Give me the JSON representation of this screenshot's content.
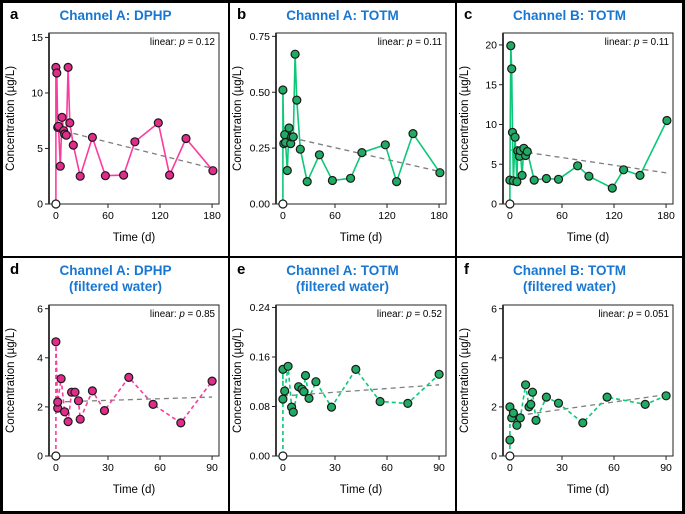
{
  "figure": {
    "background": "#ffffff",
    "border_color": "#000000",
    "title_color": "#1777D2",
    "axis_color": "#222222",
    "spine_color": "#3d3d3d",
    "trend_color": "#7f7f7f",
    "series_colors": {
      "pink_line": "#FA3C9F",
      "pink_fill": "#E02C8B",
      "green_line": "#0CC878",
      "green_fill": "#1FAB63",
      "marker_stroke": "#1a1a1a",
      "origin_fill": "#ffffff"
    }
  },
  "chart_data": [
    {
      "type": "scatter",
      "panel_letter": "a",
      "title": "Channel A: DPHP",
      "subtitle": "",
      "annotation": {
        "prefix": "linear: ",
        "variable": "p",
        "eq": " = 0.12"
      },
      "xlabel": "Time (d)",
      "ylabel": "Concentration (µg/L)",
      "xlim": [
        -8,
        188
      ],
      "ylim": [
        0,
        15.4
      ],
      "x_ticks": [
        0,
        60,
        120,
        180
      ],
      "x_tick_labels": [
        "0",
        "60",
        "120",
        "180"
      ],
      "y_ticks": [
        0,
        5,
        10,
        15
      ],
      "y_tick_labels": [
        "0",
        "5",
        "10",
        "15"
      ],
      "series": "pink",
      "line_style": "solid",
      "points": [
        [
          0,
          0
        ],
        [
          0,
          12.3
        ],
        [
          1,
          11.8
        ],
        [
          2,
          6.9
        ],
        [
          3,
          7.0
        ],
        [
          5,
          3.4
        ],
        [
          7,
          7.8
        ],
        [
          9,
          6.6
        ],
        [
          10,
          6.3
        ],
        [
          12,
          6.2
        ],
        [
          14,
          12.3
        ],
        [
          16,
          7.3
        ],
        [
          20,
          5.3
        ],
        [
          28,
          2.5
        ],
        [
          42,
          6.0
        ],
        [
          57,
          2.55
        ],
        [
          78,
          2.6
        ],
        [
          91,
          5.6
        ],
        [
          118,
          7.3
        ],
        [
          131,
          2.6
        ],
        [
          150,
          5.9
        ],
        [
          181,
          3.0
        ]
      ],
      "trend": {
        "style": "dashed",
        "x": [
          0,
          181
        ],
        "y": [
          6.75,
          3.2
        ]
      }
    },
    {
      "type": "scatter",
      "panel_letter": "b",
      "title": "Channel A: TOTM",
      "subtitle": "",
      "annotation": {
        "prefix": "linear: ",
        "variable": "p",
        "eq": " = 0.11"
      },
      "xlabel": "Time (d)",
      "ylabel": "Concentration (µg/L)",
      "xlim": [
        -8,
        188
      ],
      "ylim": [
        0,
        0.765
      ],
      "x_ticks": [
        0,
        60,
        120,
        180
      ],
      "x_tick_labels": [
        "0",
        "60",
        "120",
        "180"
      ],
      "y_ticks": [
        0,
        0.25,
        0.5,
        0.75
      ],
      "y_tick_labels": [
        "0.00",
        "0.25",
        "0.50",
        "0.75"
      ],
      "series": "green",
      "line_style": "solid",
      "points": [
        [
          0,
          0
        ],
        [
          0,
          0.51
        ],
        [
          1,
          0.27
        ],
        [
          2,
          0.31
        ],
        [
          3,
          0.275
        ],
        [
          5,
          0.15
        ],
        [
          7,
          0.34
        ],
        [
          9,
          0.27
        ],
        [
          10,
          0.3
        ],
        [
          12,
          0.3
        ],
        [
          14,
          0.67
        ],
        [
          16,
          0.465
        ],
        [
          20,
          0.245
        ],
        [
          28,
          0.1
        ],
        [
          42,
          0.22
        ],
        [
          57,
          0.105
        ],
        [
          78,
          0.115
        ],
        [
          91,
          0.23
        ],
        [
          118,
          0.265
        ],
        [
          131,
          0.1
        ],
        [
          150,
          0.315
        ],
        [
          181,
          0.14
        ]
      ],
      "trend": {
        "style": "dashed",
        "x": [
          0,
          181
        ],
        "y": [
          0.305,
          0.145
        ]
      }
    },
    {
      "type": "scatter",
      "panel_letter": "c",
      "title": "Channel B: TOTM",
      "subtitle": "",
      "annotation": {
        "prefix": "linear: ",
        "variable": "p",
        "eq": " = 0.11"
      },
      "xlabel": "Time (d)",
      "ylabel": "Concentration (µg/L)",
      "xlim": [
        -8,
        188
      ],
      "ylim": [
        0,
        21.5
      ],
      "x_ticks": [
        0,
        60,
        120,
        180
      ],
      "x_tick_labels": [
        "0",
        "60",
        "120",
        "180"
      ],
      "y_ticks": [
        0,
        5,
        10,
        15,
        20
      ],
      "y_tick_labels": [
        "0",
        "5",
        "10",
        "15",
        "20"
      ],
      "series": "green",
      "line_style": "solid",
      "points": [
        [
          0,
          0
        ],
        [
          0,
          3.0
        ],
        [
          1,
          19.9
        ],
        [
          2,
          17.0
        ],
        [
          3,
          9.0
        ],
        [
          4,
          2.9
        ],
        [
          6,
          8.4
        ],
        [
          8,
          2.8
        ],
        [
          9,
          6.7
        ],
        [
          11,
          6.0
        ],
        [
          12,
          6.7
        ],
        [
          14,
          3.6
        ],
        [
          16,
          7.0
        ],
        [
          18,
          6.1
        ],
        [
          20,
          6.6
        ],
        [
          28,
          3.0
        ],
        [
          42,
          3.2
        ],
        [
          56,
          3.1
        ],
        [
          78,
          4.8
        ],
        [
          91,
          3.5
        ],
        [
          118,
          2.0
        ],
        [
          131,
          4.3
        ],
        [
          150,
          3.6
        ],
        [
          181,
          10.5
        ]
      ],
      "trend": {
        "style": "dashed",
        "x": [
          0,
          181
        ],
        "y": [
          6.8,
          3.9
        ]
      }
    },
    {
      "type": "scatter",
      "panel_letter": "d",
      "title": "Channel A: DPHP",
      "subtitle": "(filtered water)",
      "annotation": {
        "prefix": "linear: ",
        "variable": "p",
        "eq": " = 0.85"
      },
      "xlabel": "Time (d)",
      "ylabel": "Concentration (µg/L)",
      "xlim": [
        -4,
        94
      ],
      "ylim": [
        0,
        6.15
      ],
      "x_ticks": [
        0,
        30,
        60,
        90
      ],
      "x_tick_labels": [
        "0",
        "30",
        "60",
        "90"
      ],
      "y_ticks": [
        0,
        2,
        4,
        6
      ],
      "y_tick_labels": [
        "0",
        "2",
        "4",
        "6"
      ],
      "series": "pink",
      "line_style": "dashed",
      "points": [
        [
          0,
          0
        ],
        [
          0,
          4.65
        ],
        [
          1,
          1.95
        ],
        [
          1,
          2.2
        ],
        [
          3,
          3.15
        ],
        [
          5,
          1.8
        ],
        [
          7,
          1.4
        ],
        [
          9,
          2.6
        ],
        [
          11,
          2.6
        ],
        [
          13,
          2.25
        ],
        [
          14,
          1.5
        ],
        [
          21,
          2.65
        ],
        [
          28,
          1.85
        ],
        [
          42,
          3.2
        ],
        [
          56,
          2.1
        ],
        [
          72,
          1.35
        ],
        [
          90,
          3.05
        ]
      ],
      "trend": {
        "style": "dashed",
        "x": [
          0,
          90
        ],
        "y": [
          2.2,
          2.4
        ]
      }
    },
    {
      "type": "scatter",
      "panel_letter": "e",
      "title": "Channel A: TOTM",
      "subtitle": "(filtered water)",
      "annotation": {
        "prefix": "linear: ",
        "variable": "p",
        "eq": " = 0.52"
      },
      "xlabel": "Time (d)",
      "ylabel": "Concentration (µg/L)",
      "xlim": [
        -4,
        94
      ],
      "ylim": [
        0,
        0.244
      ],
      "x_ticks": [
        0,
        30,
        60,
        90
      ],
      "x_tick_labels": [
        "0",
        "30",
        "60",
        "90"
      ],
      "y_ticks": [
        0,
        0.08,
        0.16,
        0.24
      ],
      "y_tick_labels": [
        "0.00",
        "0.08",
        "0.16",
        "0.24"
      ],
      "series": "green",
      "line_style": "dashed",
      "points": [
        [
          0,
          0
        ],
        [
          0,
          0.14
        ],
        [
          0,
          0.092
        ],
        [
          1,
          0.105
        ],
        [
          3,
          0.145
        ],
        [
          5,
          0.079
        ],
        [
          6,
          0.071
        ],
        [
          9,
          0.112
        ],
        [
          11,
          0.108
        ],
        [
          12,
          0.104
        ],
        [
          13,
          0.13
        ],
        [
          15,
          0.093
        ],
        [
          19,
          0.12
        ],
        [
          28,
          0.079
        ],
        [
          42,
          0.14
        ],
        [
          56,
          0.088
        ],
        [
          72,
          0.085
        ],
        [
          90,
          0.132
        ]
      ],
      "trend": {
        "style": "dashed",
        "x": [
          0,
          90
        ],
        "y": [
          0.097,
          0.115
        ]
      }
    },
    {
      "type": "scatter",
      "panel_letter": "f",
      "title": "Channel B: TOTM",
      "subtitle": "(filtered water)",
      "annotation": {
        "prefix": "linear: ",
        "variable": "p",
        "eq": " = 0.051"
      },
      "xlabel": "Time (d)",
      "ylabel": "Concentration (µg/L)",
      "xlim": [
        -4,
        94
      ],
      "ylim": [
        0,
        6.15
      ],
      "x_ticks": [
        0,
        30,
        60,
        90
      ],
      "x_tick_labels": [
        "0",
        "30",
        "60",
        "90"
      ],
      "y_ticks": [
        0,
        2,
        4,
        6
      ],
      "y_tick_labels": [
        "0",
        "2",
        "4",
        "6"
      ],
      "series": "green",
      "line_style": "dashed",
      "points": [
        [
          0,
          0
        ],
        [
          0,
          0.65
        ],
        [
          0,
          2.0
        ],
        [
          1,
          1.55
        ],
        [
          2,
          1.75
        ],
        [
          4,
          1.25
        ],
        [
          6,
          1.55
        ],
        [
          9,
          2.9
        ],
        [
          11,
          2.0
        ],
        [
          12,
          2.1
        ],
        [
          13,
          2.6
        ],
        [
          15,
          1.45
        ],
        [
          21,
          2.4
        ],
        [
          28,
          2.15
        ],
        [
          42,
          1.35
        ],
        [
          56,
          2.4
        ],
        [
          78,
          2.1
        ],
        [
          90,
          2.45
        ]
      ],
      "trend": {
        "style": "dashed",
        "x": [
          0,
          90
        ],
        "y": [
          1.6,
          2.5
        ]
      }
    }
  ]
}
